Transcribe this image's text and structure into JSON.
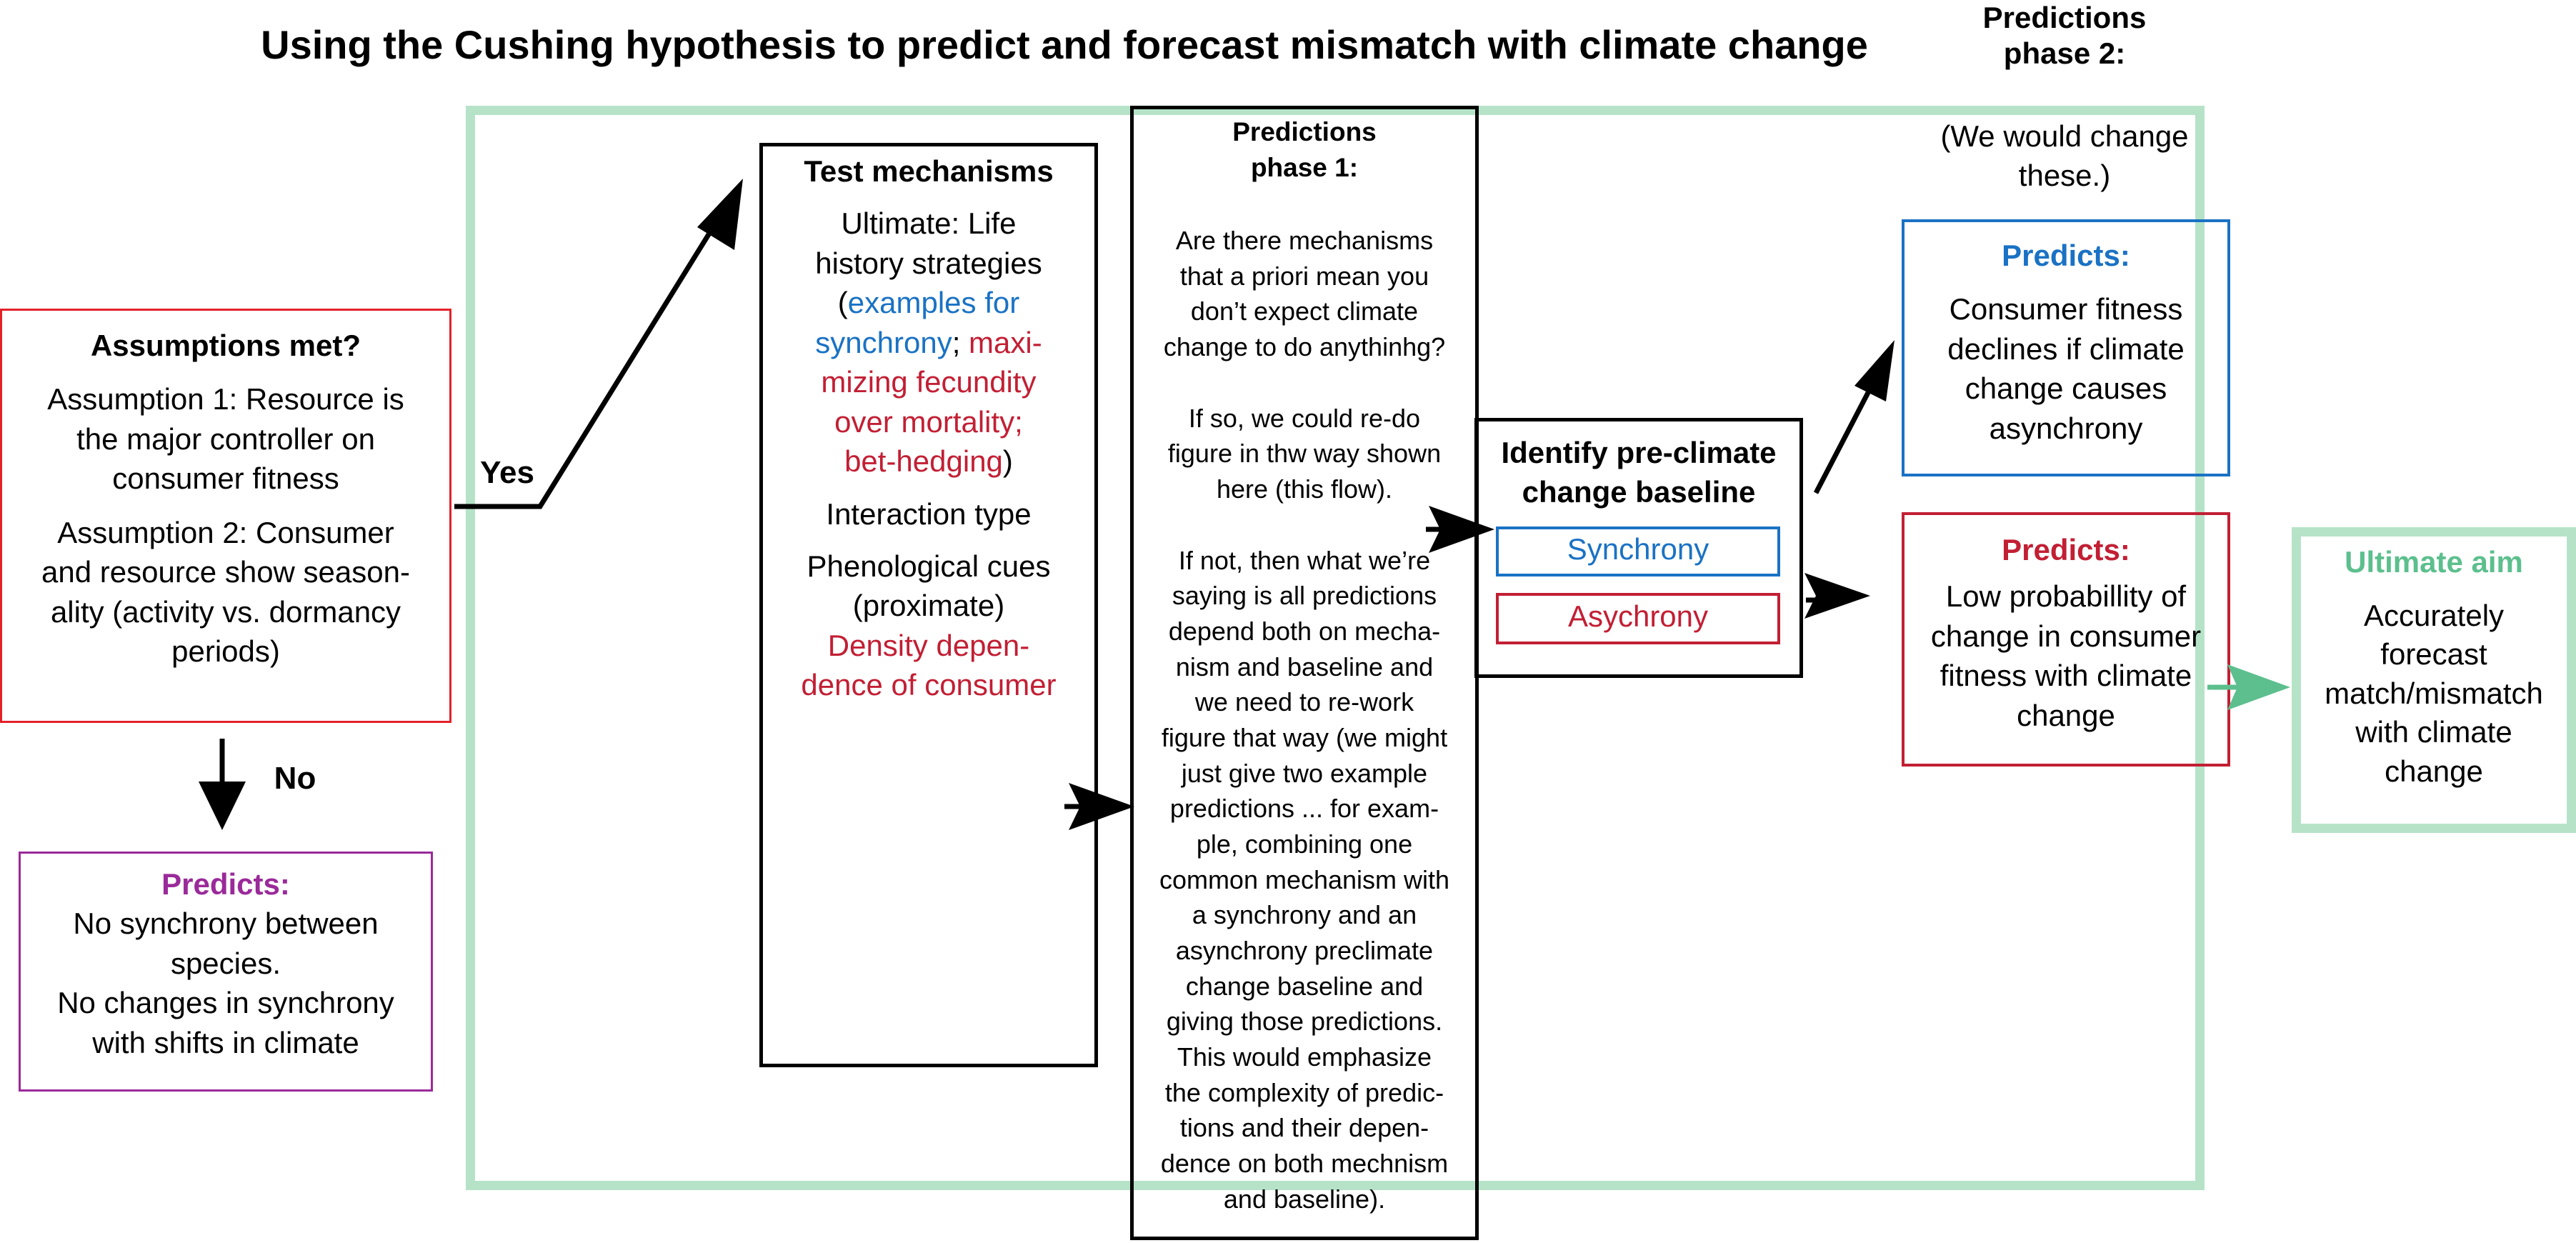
{
  "title": "Using the Cushing hypothesis to predict and forecast mismatch with climate change",
  "phase2_header": [
    "Predictions",
    "phase 2:"
  ],
  "phase2_note": [
    "(We would change",
    "these.)"
  ],
  "assumptions": {
    "heading": "Assumptions met?",
    "a1": [
      "Assumption 1: Resource is",
      "the major controller on",
      "consumer fitness"
    ],
    "a2": [
      "Assumption 2: Consumer",
      "and resource show season-",
      "ality (activity vs. dormancy",
      "periods)"
    ]
  },
  "yes_label": "Yes",
  "no_label": "No",
  "predicts_no": {
    "heading": "Predicts:",
    "lines": [
      "No synchrony between",
      "species.",
      "No changes in synchrony",
      "with shifts in climate"
    ]
  },
  "test_mechanisms": {
    "heading": "Test mechanisms",
    "ultimate": [
      "Ultimate: Life",
      "history strategies"
    ],
    "paren_open": "(",
    "ex_sync_1": "examples for",
    "ex_sync_2": "synchrony",
    "semicolon": ";",
    "ex_async": [
      "maxi-",
      "mizing fecundity",
      "over mortality;",
      "bet-hedging"
    ],
    "paren_close": ")",
    "interaction": "Interaction type",
    "phenology": [
      "Phenological cues",
      "(proximate)"
    ],
    "density": [
      "Density depen-",
      "dence of consumer"
    ]
  },
  "phase1": {
    "heading": [
      "Predictions",
      "phase 1:"
    ],
    "para1": [
      "Are there mechanisms",
      "that a priori mean you",
      "don’t expect climate",
      "change to do anythinhg?"
    ],
    "para2": [
      "If so, we could re-do",
      "figure in thw way shown",
      "here (this flow)."
    ],
    "para3": [
      "If not, then what we’re",
      "saying is all predictions",
      "depend both on mecha-",
      "nism and baseline and",
      "we need to re-work",
      "figure that way (we might",
      "just give two example",
      "predictions ... for exam-",
      "ple, combining one",
      "common mechanism with",
      "a synchrony and an",
      "asynchrony preclimate",
      "change baseline and",
      "giving those predictions.",
      "This would emphasize",
      "the complexity of predic-",
      "tions and their depen-",
      "dence on both mechnism",
      "and baseline)."
    ]
  },
  "baseline": {
    "heading": [
      "Identify pre-climate",
      "change baseline"
    ],
    "synchrony": "Synchrony",
    "asynchrony": "Asychrony"
  },
  "predicts_sync": {
    "heading": "Predicts:",
    "lines": [
      "Consumer fitness",
      "declines if climate",
      "change causes",
      "asynchrony"
    ]
  },
  "predicts_async": {
    "heading": "Predicts:",
    "lines": [
      "Low probabillity of",
      "change in consumer",
      "fitness with climate",
      "change"
    ]
  },
  "ultimate_aim": {
    "heading": "Ultimate aim",
    "lines": [
      "Accurately",
      "forecast",
      "match/mismatch",
      "with climate",
      "change"
    ]
  },
  "colors": {
    "green_frame": "#b6e3c8",
    "green_accent": "#5cbf8d",
    "red": "#c21f34",
    "blue": "#1a72c4",
    "purple": "#9a2a9a",
    "assumption_border": "#e2222a"
  }
}
